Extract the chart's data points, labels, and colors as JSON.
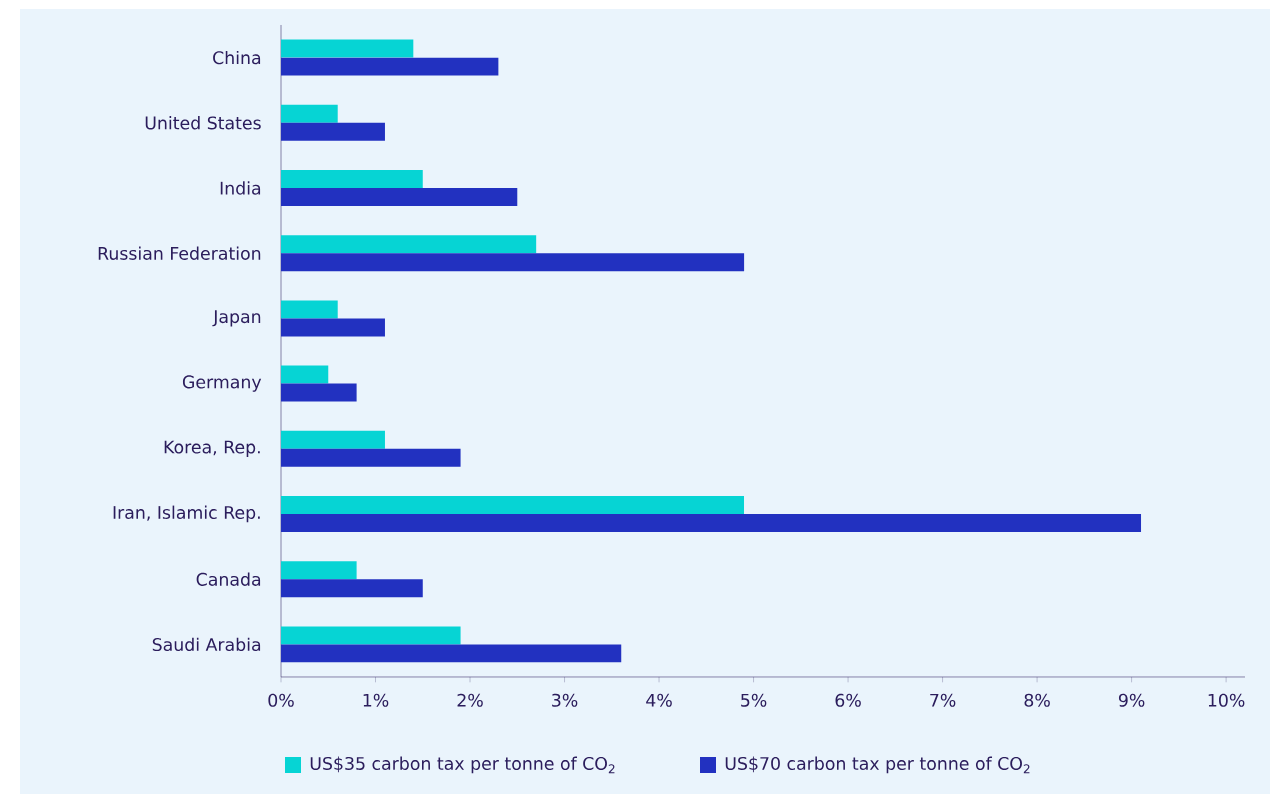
{
  "chart_data": {
    "type": "bar",
    "orientation": "horizontal",
    "categories": [
      "China",
      "United States",
      "India",
      "Russian Federation",
      "Japan",
      "Germany",
      "Korea, Rep.",
      "Iran, Islamic Rep.",
      "Canada",
      "Saudi Arabia"
    ],
    "series": [
      {
        "name": "US$35 carbon tax per tonne of CO$_{2}$",
        "color": "#06d4d4",
        "values": [
          1.4,
          0.6,
          1.5,
          2.7,
          0.6,
          0.5,
          1.1,
          4.9,
          0.8,
          1.9
        ]
      },
      {
        "name": "US$70 carbon tax per tonne of CO$_{2}$",
        "color": "#2231c0",
        "values": [
          2.3,
          1.1,
          2.5,
          4.9,
          1.1,
          0.8,
          1.9,
          9.1,
          1.5,
          3.6
        ]
      }
    ],
    "xlim": [
      0,
      10.2
    ],
    "xticks": [
      {
        "value": 0,
        "label": "0%"
      },
      {
        "value": 1,
        "label": "1%"
      },
      {
        "value": 2,
        "label": "2%"
      },
      {
        "value": 3,
        "label": "3%"
      },
      {
        "value": 4,
        "label": "4%"
      },
      {
        "value": 5,
        "label": "5%"
      },
      {
        "value": 6,
        "label": "6%"
      },
      {
        "value": 7,
        "label": "7%"
      },
      {
        "value": 8,
        "label": "8%"
      },
      {
        "value": 9,
        "label": "9%"
      },
      {
        "value": 10,
        "label": "10%"
      }
    ],
    "grid": false,
    "legend": "bottom"
  }
}
